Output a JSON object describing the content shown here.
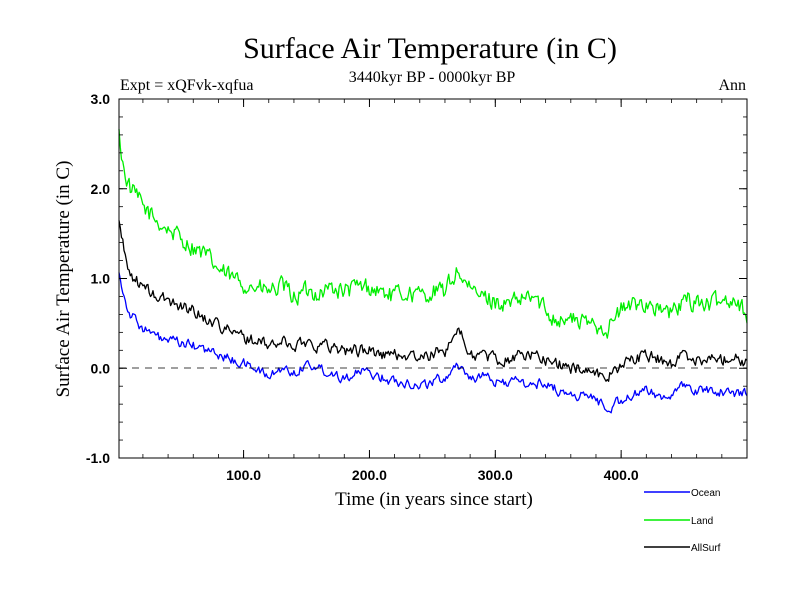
{
  "header": {
    "title": "Surface Air Temperature (in C)",
    "experiment": "Expt = xQFvk-xqfua",
    "period": "3440kyr BP - 0000kyr BP",
    "season": "Ann"
  },
  "chart_data": {
    "type": "line",
    "title": "Surface Air Temperature (in C)",
    "xlabel": "Time (in years since start)",
    "ylabel": "Surface Air Temperature (in C)",
    "xlim": [
      1,
      500
    ],
    "ylim": [
      -1.0,
      3.0
    ],
    "xticks": [
      100,
      200,
      300,
      400
    ],
    "xtick_labels": [
      "100.0",
      "200.0",
      "300.0",
      "400.0"
    ],
    "yticks": [
      -1,
      0,
      1,
      2,
      3
    ],
    "ytick_labels": [
      "-1.0",
      "0.0",
      "1.0",
      "2.0",
      "3.0"
    ],
    "zero_line": 0.0,
    "grid": false,
    "legend_position": "below-right",
    "x_sample_years": [
      1,
      5,
      10,
      20,
      30,
      40,
      50,
      60,
      70,
      80,
      90,
      100,
      110,
      120,
      130,
      140,
      150,
      160,
      170,
      180,
      190,
      200,
      210,
      220,
      230,
      240,
      250,
      260,
      270,
      280,
      290,
      300,
      310,
      320,
      330,
      340,
      350,
      360,
      370,
      380,
      390,
      400,
      410,
      420,
      430,
      440,
      450,
      460,
      470,
      480,
      490,
      500
    ],
    "series": [
      {
        "name": "Ocean",
        "color": "#0000ff",
        "values": [
          1.1,
          0.8,
          0.6,
          0.45,
          0.35,
          0.3,
          0.28,
          0.25,
          0.2,
          0.15,
          0.1,
          0.05,
          0.0,
          -0.1,
          0.0,
          -0.05,
          0.05,
          0.0,
          -0.05,
          -0.1,
          -0.05,
          -0.05,
          -0.1,
          -0.15,
          -0.15,
          -0.2,
          -0.15,
          -0.1,
          0.05,
          -0.1,
          -0.1,
          -0.15,
          -0.15,
          -0.15,
          -0.2,
          -0.15,
          -0.25,
          -0.3,
          -0.3,
          -0.35,
          -0.45,
          -0.35,
          -0.3,
          -0.25,
          -0.3,
          -0.3,
          -0.2,
          -0.25,
          -0.25,
          -0.25,
          -0.3,
          -0.25
        ],
        "noise": 0.09
      },
      {
        "name": "Land",
        "color": "#00ee00",
        "values": [
          2.6,
          2.2,
          2.0,
          1.8,
          1.65,
          1.55,
          1.45,
          1.35,
          1.25,
          1.1,
          1.0,
          0.95,
          0.9,
          0.85,
          0.9,
          0.8,
          0.85,
          0.85,
          0.9,
          0.85,
          0.9,
          0.9,
          0.85,
          0.8,
          0.85,
          0.8,
          0.85,
          0.85,
          1.1,
          0.85,
          0.8,
          0.75,
          0.7,
          0.75,
          0.8,
          0.65,
          0.55,
          0.55,
          0.5,
          0.5,
          0.45,
          0.65,
          0.7,
          0.75,
          0.65,
          0.6,
          0.75,
          0.75,
          0.7,
          0.75,
          0.8,
          0.6
        ],
        "noise": 0.17
      },
      {
        "name": "AllSurf",
        "color": "#000000",
        "values": [
          1.65,
          1.3,
          1.05,
          0.9,
          0.8,
          0.75,
          0.7,
          0.65,
          0.55,
          0.5,
          0.4,
          0.35,
          0.3,
          0.25,
          0.3,
          0.25,
          0.3,
          0.25,
          0.25,
          0.2,
          0.2,
          0.2,
          0.15,
          0.15,
          0.15,
          0.1,
          0.15,
          0.2,
          0.45,
          0.15,
          0.15,
          0.1,
          0.1,
          0.15,
          0.15,
          0.1,
          0.05,
          0.0,
          0.0,
          -0.05,
          -0.1,
          0.05,
          0.1,
          0.15,
          0.1,
          0.05,
          0.15,
          0.1,
          0.1,
          0.1,
          0.15,
          0.05
        ],
        "noise": 0.11
      }
    ]
  }
}
